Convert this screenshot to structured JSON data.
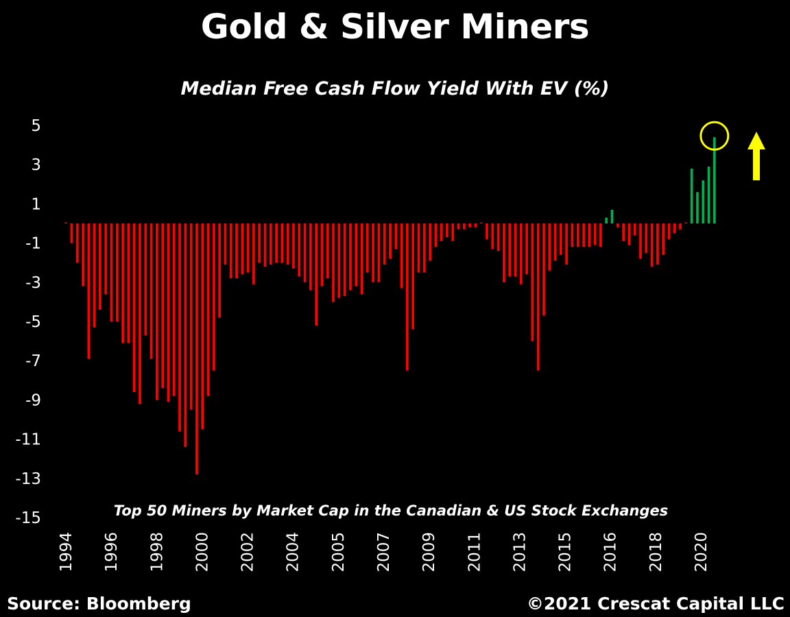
{
  "chart_data": {
    "type": "bar",
    "title": "Gold & Silver Miners",
    "subtitle": "Median Free Cash Flow Yield With EV (%)",
    "annotation": "Top 50 Miners by Market Cap in the Canadian & US Stock Exchanges",
    "xlabel": "",
    "ylabel": "",
    "ylim": [
      -15,
      5
    ],
    "y_ticks": [
      5,
      3,
      1,
      -1,
      -3,
      -5,
      -7,
      -9,
      -11,
      -13,
      -15
    ],
    "x_tick_labels": [
      "1994",
      "1996",
      "1998",
      "2000",
      "2002",
      "2004",
      "2005",
      "2007",
      "2009",
      "2011",
      "2013",
      "2015",
      "2016",
      "2018",
      "2020"
    ],
    "grid": false,
    "legend": "none",
    "colors": {
      "negative": "#ff0000",
      "positive": "#00b050",
      "highlight_circle": "#ffff00",
      "arrow": "#ffff00"
    },
    "annotations": [
      "yellow circle marking latest value",
      "yellow up arrow"
    ],
    "values": [
      0,
      -1,
      -2,
      -3.2,
      -6.9,
      -5.3,
      -4.4,
      -3.6,
      -5,
      -5,
      -6.1,
      -6.1,
      -8.6,
      -9.2,
      -5.7,
      -6.9,
      -9,
      -8.4,
      -9.1,
      -8.8,
      -10.6,
      -11.4,
      -9.5,
      -12.8,
      -10.5,
      -8.8,
      -7.5,
      -4.8,
      -2.1,
      -2.8,
      -2.8,
      -2.6,
      -2.5,
      -3.1,
      -2,
      -2.2,
      -2.1,
      -2,
      -2,
      -2.1,
      -2.3,
      -2.7,
      -3,
      -3.4,
      -5.2,
      -3.2,
      -2.8,
      -4,
      -3.8,
      -3.7,
      -3.4,
      -3.2,
      -3.6,
      -2.5,
      -3,
      -3,
      -2.1,
      -1.8,
      -1.3,
      -3.3,
      -7.5,
      -5.4,
      -2.5,
      -2.5,
      -1.9,
      -1.2,
      -0.9,
      -0.7,
      -0.9,
      -0.3,
      -0.3,
      -0.2,
      -0.2,
      0,
      -0.8,
      -1.3,
      -1.4,
      -3,
      -2.7,
      -2.7,
      -3.1,
      -2.6,
      -6,
      -7.5,
      -4.7,
      -2.4,
      -1.9,
      -1.6,
      -2.1,
      -1.2,
      -1.2,
      -1.2,
      -1.2,
      -1.1,
      -1.2,
      0.3,
      0.7,
      -0.2,
      -0.9,
      -1.1,
      -0.6,
      -1.8,
      -1.5,
      -2.2,
      -2.1,
      -1.6,
      -0.8,
      -0.5,
      -0.3,
      0,
      2.8,
      1.6,
      2.2,
      2.9,
      4.4
    ]
  },
  "footer": {
    "source": "Source: Bloomberg",
    "copyright": "©2021 Crescat Capital LLC"
  }
}
